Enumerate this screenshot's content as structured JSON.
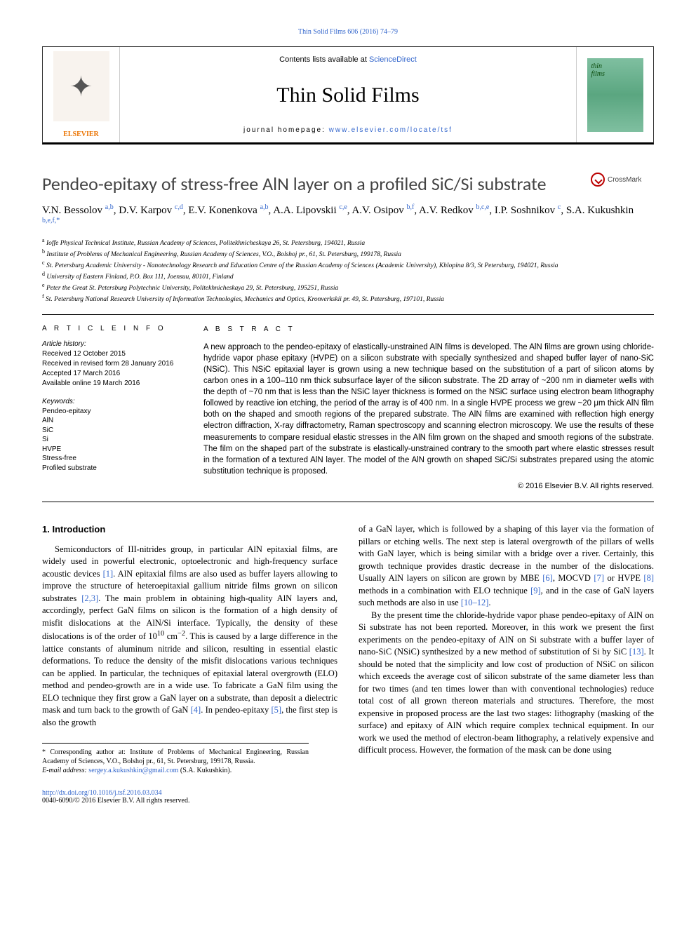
{
  "top_link": "Thin Solid Films 606 (2016) 74–79",
  "header": {
    "contents_text": "Contents lists available at ",
    "contents_link": "ScienceDirect",
    "journal_name": "Thin Solid Films",
    "homepage_label": "journal homepage: ",
    "homepage_url": "www.elsevier.com/locate/tsf",
    "publisher": "ELSEVIER",
    "cover_text_line1": "thin",
    "cover_text_line2": "films"
  },
  "title": "Pendeo-epitaxy of stress-free AlN layer on a profiled SiC/Si substrate",
  "crossmark": "CrossMark",
  "authors_html": "V.N. Bessolov <sup>a,b</sup>, D.V. Karpov <sup>c,d</sup>, E.V. Konenkova <sup>a,b</sup>, A.A. Lipovskii <sup>c,e</sup>, A.V. Osipov <sup>b,f</sup>, A.V. Redkov <sup>b,c,e</sup>, I.P. Soshnikov <sup>c</sup>, S.A. Kukushkin <sup>b,e,f,*</sup>",
  "affiliations": [
    {
      "sup": "a",
      "text": "Ioffe Physical Technical Institute, Russian Academy of Sciences, Politekhnicheskaya 26, St. Petersburg, 194021, Russia"
    },
    {
      "sup": "b",
      "text": "Institute of Problems of Mechanical Engineering, Russian Academy of Sciences, V.O., Bolshoj pr., 61, St. Petersburg, 199178, Russia"
    },
    {
      "sup": "c",
      "text": "St. Petersburg Academic University - Nanotechnology Research and Education Centre of the Russian Academy of Sciences (Academic University), Khlopina 8/3, St Petersburg, 194021, Russia"
    },
    {
      "sup": "d",
      "text": "University of Eastern Finland, P.O. Box 111, Joensuu, 80101, Finland"
    },
    {
      "sup": "e",
      "text": "Peter the Great St. Petersburg Polytechnic University, Politekhnicheskaya 29, St. Petersburg, 195251, Russia"
    },
    {
      "sup": "f",
      "text": "St. Petersburg National Research University of Information Technologies, Mechanics and Optics, Kronverkskii pr. 49, St. Petersburg, 197101, Russia"
    }
  ],
  "article_info": {
    "head": "A R T I C L E    I N F O",
    "history_label": "Article history:",
    "history": [
      "Received 12 October 2015",
      "Received in revised form 28 January 2016",
      "Accepted 17 March 2016",
      "Available online 19 March 2016"
    ],
    "keywords_label": "Keywords:",
    "keywords": [
      "Pendeo-epitaxy",
      "AlN",
      "SiC",
      "Si",
      "HVPE",
      "Stress-free",
      "Profiled substrate"
    ]
  },
  "abstract": {
    "head": "A B S T R A C T",
    "text": "A new approach to the pendeo-epitaxy of elastically-unstrained AlN films is developed. The AlN films are grown using chloride-hydride vapor phase epitaxy (HVPE) on a silicon substrate with specially synthesized and shaped buffer layer of nano-SiC (NSiC). This NSiC epitaxial layer is grown using a new technique based on the substitution of a part of silicon atoms by carbon ones in a 100–110 nm thick subsurface layer of the silicon substrate. The 2D array of ~200 nm in diameter wells with the depth of ~70 nm that is less than the NSiC layer thickness is formed on the NSiC surface using electron beam lithography followed by reactive ion etching, the period of the array is of 400 nm. In a single HVPE process we grew ~20 μm thick AlN film both on the shaped and smooth regions of the prepared substrate. The AlN films are examined with reflection high energy electron diffraction, X-ray diffractometry, Raman spectroscopy and scanning electron microscopy. We use the results of these measurements to compare residual elastic stresses in the AlN film grown on the shaped and smooth regions of the substrate. The film on the shaped part of the substrate is elastically-unstrained contrary to the smooth part where elastic stresses result in the formation of a textured AlN layer. The model of the AlN growth on shaped SiC/Si substrates prepared using the atomic substitution technique is proposed.",
    "copyright": "© 2016 Elsevier B.V. All rights reserved."
  },
  "intro": {
    "head": "1. Introduction",
    "para1_a": "Semiconductors of III-nitrides group, in particular AlN epitaxial films, are widely used in powerful electronic, optoelectronic and high-frequency surface acoustic devices ",
    "c1": "[1]",
    "para1_b": ". AlN epitaxial films are also used as buffer layers allowing to improve the structure of heteroepitaxial gallium nitride films grown on silicon substrates ",
    "c2": "[2,3]",
    "para1_c": ". The main problem in obtaining high-quality AlN layers and, accordingly, perfect GaN films on silicon is the formation of a high density of misfit dislocations at the AlN/Si interface. Typically, the density of these dislocations is of the order of 10",
    "exp10": "10",
    "para1_d": " cm",
    "exp_neg2": "−2",
    "para1_e": ". This is caused by a large difference in the lattice constants of aluminum nitride and silicon, resulting in essential elastic deformations. To reduce the density of the misfit dislocations various techniques can be applied. In particular, the techniques of epitaxial lateral overgrowth (ELO) method and pendeo-growth are in a wide use. To fabricate a GaN film using the ELO technique they first grow a GaN layer on a substrate, than deposit a dielectric mask and turn back to the growth of GaN ",
    "c4": "[4]",
    "para1_f": ". In pendeo-epitaxy ",
    "c5": "[5]",
    "para1_g": ", the first step is also the growth",
    "para2_a": "of a GaN layer, which is followed by a shaping of this layer via the formation of pillars or etching wells. The next step is lateral overgrowth of the pillars of wells with GaN layer, which is being similar with a bridge over a river. Certainly, this growth technique provides drastic decrease in the number of the dislocations. Usually AlN layers on silicon are grown by MBE ",
    "c6": "[6]",
    "para2_b": ", MOCVD ",
    "c7": "[7]",
    "para2_c": " or HVPE ",
    "c8": "[8]",
    "para2_d": " methods in a combination with ELO technique ",
    "c9": "[9]",
    "para2_e": ", and in the case of GaN layers such methods are also in use ",
    "c10": "[10–12]",
    "para2_f": ".",
    "para3_a": "By the present time the chloride-hydride vapor phase pendeo-epitaxy of AlN on Si substrate has not been reported. Moreover, in this work we present the first experiments on the pendeo-epitaxy of AlN on Si substrate with a buffer layer of nano-SiC (NSiC) synthesized by a new method of substitution of Si by SiC ",
    "c13": "[13]",
    "para3_b": ". It should be noted that the simplicity and low cost of production of NSiC on silicon which exceeds the average cost of silicon substrate of the same diameter less than for two times (and ten times lower than with conventional technologies) reduce total cost of all grown thereon materials and structures. Therefore, the most expensive in proposed process are the last two stages: lithography (masking of the surface) and epitaxy of AlN which require complex technical equipment. In our work we used the method of electron-beam lithography, a relatively expensive and difficult process. However, the formation of the mask can be done using"
  },
  "corresp": {
    "star": "*",
    "text": "Corresponding author at: Institute of Problems of Mechanical Engineering, Russian Academy of Sciences, V.O., Bolshoj pr., 61, St. Petersburg, 199178, Russia.",
    "email_label": "E-mail address: ",
    "email": "sergey.a.kukushkin@gmail.com",
    "email_suffix": " (S.A. Kukushkin)."
  },
  "footer": {
    "doi": "http://dx.doi.org/10.1016/j.tsf.2016.03.034",
    "issn_copyright": "0040-6090/© 2016 Elsevier B.V. All rights reserved."
  }
}
